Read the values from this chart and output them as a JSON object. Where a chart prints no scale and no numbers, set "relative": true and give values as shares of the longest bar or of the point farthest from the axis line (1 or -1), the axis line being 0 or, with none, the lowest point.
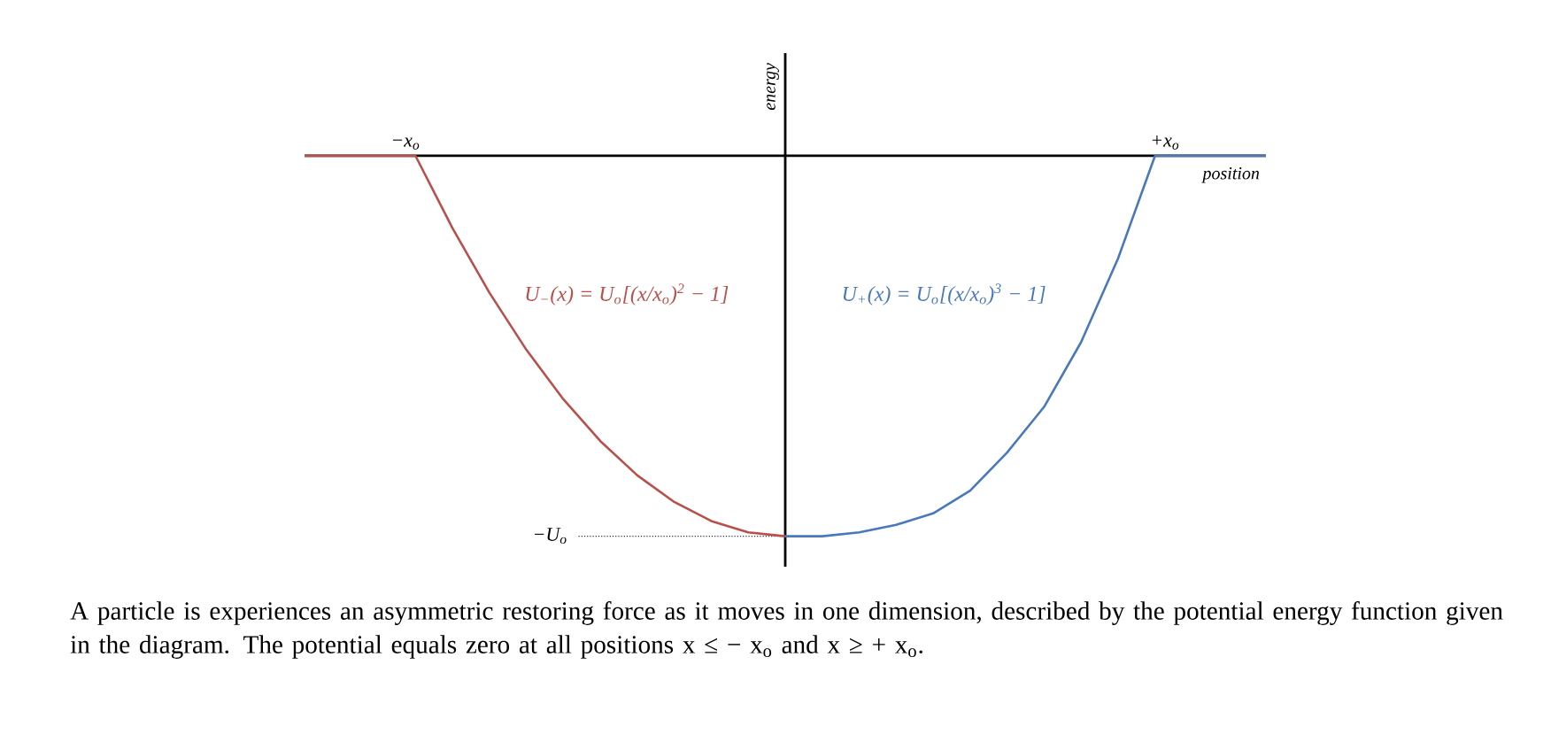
{
  "chart_data": {
    "type": "line",
    "relative": true,
    "xlabel": "position",
    "ylabel": "energy",
    "categories": [
      null,
      null,
      null,
      null,
      null,
      null,
      null,
      null,
      null,
      null,
      null,
      null,
      null,
      null,
      null,
      null,
      null,
      null,
      null,
      null,
      null,
      null,
      null,
      null,
      null,
      null,
      null
    ],
    "ref_lines": [
      {
        "axis": "y",
        "value": -1,
        "line_style": "dotted",
        "color": "#333333"
      }
    ],
    "series": [
      {
        "name": "U$_{−}$(x) = U$_{o}$[(x/x$_{o}$)$^{2}$ − 1]",
        "color": "#b8504b",
        "values": [
          0,
          0,
          0,
          0,
          -0.19,
          -0.36,
          -0.51,
          -0.64,
          -0.75,
          -0.84,
          -0.91,
          -0.96,
          -0.99,
          -1,
          null,
          null,
          null,
          null,
          null,
          null,
          null,
          null,
          null,
          null,
          null,
          null,
          null
        ]
      },
      {
        "name": "U$_{+}$(x) = U$_{o}$[(x/x$_{o}$)$^{3}$ − 1]",
        "color": "#4a78bd",
        "values": [
          null,
          null,
          null,
          null,
          null,
          null,
          null,
          null,
          null,
          null,
          null,
          null,
          null,
          -1,
          -1,
          -0.99,
          -0.97,
          -0.94,
          -0.88,
          -0.78,
          -0.66,
          -0.49,
          -0.27,
          0,
          0,
          0,
          0
        ]
      }
    ],
    "annotations": [
      "A particle is experiences an asymmetric restoring force as it moves in one dimension, described by the potential energy function given in the diagram. The potential equals zero at all positions x ≤ − x$_{o}$ and x ≥ + x$_{o}$.",
      "−x$_{o}$",
      "+x$_{o}$",
      "−U$_{o}$"
    ]
  }
}
